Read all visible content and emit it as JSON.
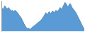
{
  "chart_data": {
    "type": "area",
    "values": [
      72,
      68,
      62,
      70,
      75,
      72,
      68,
      65,
      70,
      68,
      65,
      62,
      60,
      62,
      60,
      58,
      62,
      60,
      58,
      55,
      52,
      48,
      45,
      42,
      38,
      32,
      28,
      22,
      18,
      14,
      10,
      8,
      10,
      8,
      6,
      8,
      10,
      12,
      14,
      16,
      18,
      20,
      22,
      24,
      26,
      28,
      30,
      32,
      35,
      38,
      42,
      46,
      50,
      55,
      52,
      48,
      54,
      58,
      55,
      52,
      56,
      60,
      58,
      55,
      58,
      62,
      60,
      58,
      62,
      65,
      70,
      68,
      65,
      70,
      75,
      80,
      85,
      82,
      78,
      72,
      75,
      78,
      82,
      78,
      72,
      68,
      65,
      62,
      58,
      55,
      50,
      45,
      40,
      35,
      30,
      25,
      20,
      15,
      10,
      8
    ],
    "color": "#5b9bd5",
    "ylim": [
      0,
      90
    ],
    "tick_labels": false
  }
}
